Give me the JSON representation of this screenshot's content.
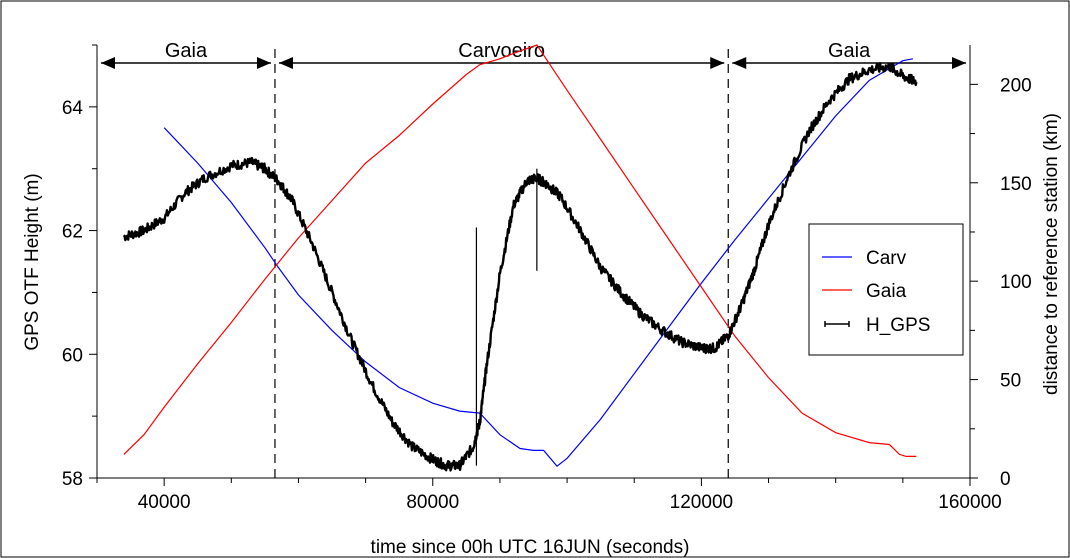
{
  "chart_data": {
    "type": "line",
    "xlabel": "time since 00h UTC 16JUN (seconds)",
    "ylabel_left": "GPS OTF Height (m)",
    "ylabel_right": "distance to reference station (km)",
    "xlim": [
      30000,
      160000
    ],
    "ylim_left": [
      58,
      65
    ],
    "ylim_right": [
      0,
      220
    ],
    "x_ticks": [
      40000,
      80000,
      120000,
      160000
    ],
    "y_left_ticks": [
      58,
      60,
      62,
      64
    ],
    "y_right_ticks": [
      0,
      50,
      100,
      150,
      200
    ],
    "grid": false,
    "legend_position": "right",
    "regions": [
      {
        "label": "Gaia",
        "x_start": 30000,
        "x_end": 56500
      },
      {
        "label": "Carvoeiro",
        "x_start": 56500,
        "x_end": 124000
      },
      {
        "label": "Gaia",
        "x_start": 124000,
        "x_end": 160000
      }
    ],
    "region_boundaries": [
      56500,
      124000
    ],
    "series": [
      {
        "name": "Carv",
        "axis": "right",
        "color": "#0000ff",
        "x": [
          40000,
          45000,
          50000,
          55000,
          57000,
          60000,
          65000,
          70000,
          75000,
          80000,
          84000,
          87000,
          90000,
          93000,
          95000,
          96500,
          98500,
          100000,
          105000,
          110000,
          115000,
          120000,
          125000,
          130000,
          135000,
          140000,
          145000,
          150000,
          151500
        ],
        "values": [
          178,
          160,
          140,
          117,
          107,
          93,
          75,
          59,
          46,
          38,
          34,
          33,
          22,
          15,
          14,
          14,
          6,
          10,
          30,
          53,
          76,
          99,
          121,
          142,
          163,
          184,
          202,
          212,
          213
        ]
      },
      {
        "name": "Gaia",
        "axis": "right",
        "color": "#ff0000",
        "x": [
          34000,
          37000,
          40000,
          45000,
          50000,
          55000,
          60000,
          65000,
          70000,
          75000,
          80000,
          85000,
          87000,
          90000,
          93000,
          95500,
          100000,
          105000,
          110000,
          115000,
          120000,
          125000,
          130000,
          135000,
          140000,
          145000,
          148000,
          149500,
          150500,
          152000
        ],
        "values": [
          12,
          22,
          36,
          58,
          79,
          101,
          122,
          141,
          160,
          174,
          190,
          205,
          210,
          213,
          217,
          220,
          197,
          172,
          147,
          122,
          97,
          72,
          51,
          33,
          23,
          18,
          17,
          12,
          11,
          11
        ]
      },
      {
        "name": "H_GPS",
        "axis": "left",
        "color": "#000000",
        "x": [
          34000,
          37000,
          40000,
          43000,
          46000,
          50000,
          53000,
          55000,
          57000,
          59000,
          62000,
          65000,
          68000,
          71000,
          74000,
          77000,
          80000,
          82000,
          84000,
          86000,
          87000,
          88000,
          90000,
          92000,
          94000,
          95500,
          97000,
          99000,
          102000,
          105000,
          108000,
          111000,
          114000,
          117000,
          120000,
          122000,
          124000,
          126000,
          128000,
          130000,
          133000,
          136000,
          139000,
          142000,
          145000,
          148000,
          150000,
          152000
        ],
        "values": [
          61.9,
          62.0,
          62.2,
          62.6,
          62.85,
          63.05,
          63.1,
          63.0,
          62.8,
          62.5,
          61.8,
          61.0,
          60.2,
          59.5,
          58.9,
          58.5,
          58.3,
          58.2,
          58.2,
          58.5,
          58.9,
          59.8,
          61.3,
          62.4,
          62.8,
          62.85,
          62.75,
          62.55,
          62.0,
          61.4,
          61.0,
          60.65,
          60.4,
          60.2,
          60.1,
          60.1,
          60.3,
          60.8,
          61.4,
          62.1,
          62.9,
          63.6,
          64.1,
          64.45,
          64.6,
          64.65,
          64.5,
          64.4
        ]
      }
    ],
    "spikes": [
      {
        "x": 86500,
        "y_from": 58.2,
        "y_to": 62.05
      },
      {
        "x": 95500,
        "y_from": 61.35,
        "y_to": 63.0
      }
    ]
  }
}
